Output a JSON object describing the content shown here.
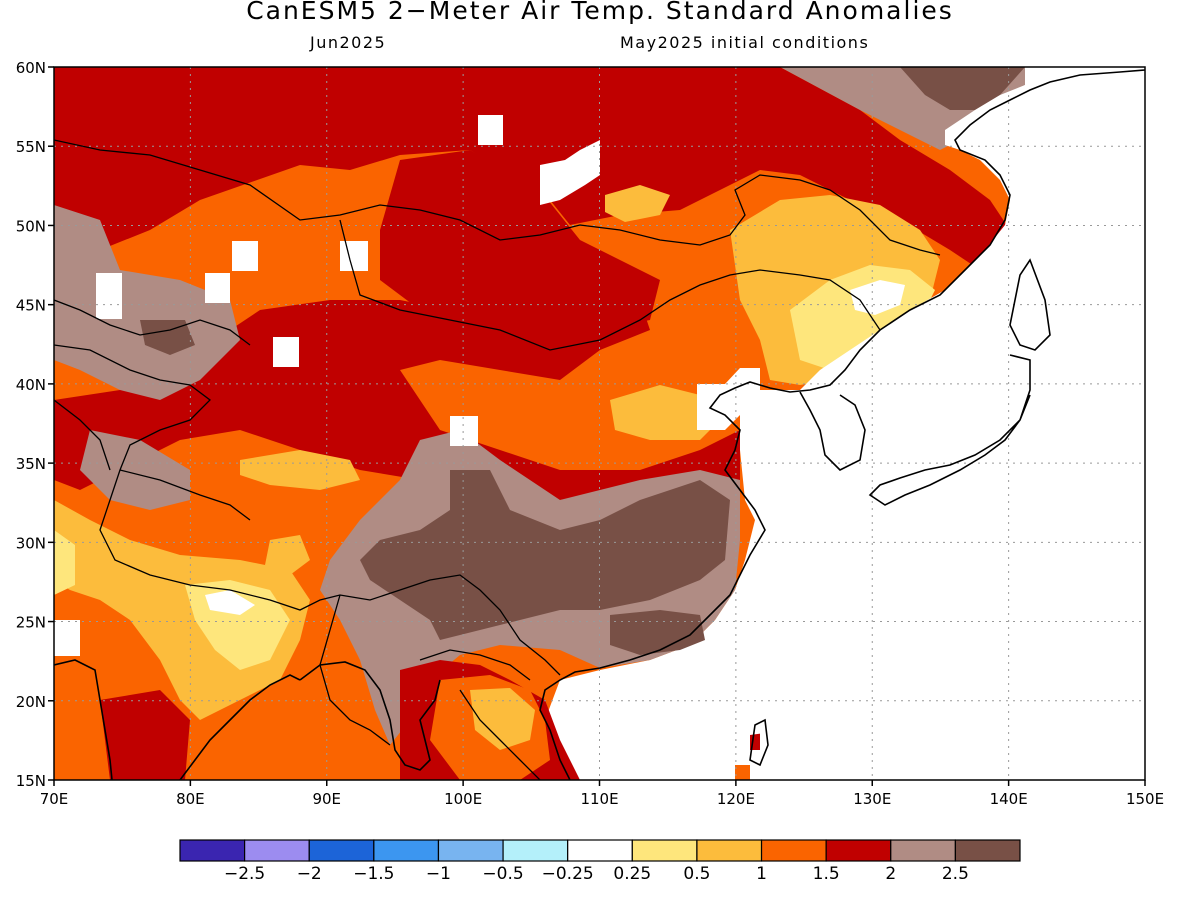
{
  "title": "CanESM5 2−Meter Air Temp. Standard Anomalies",
  "subtitle_left": "Jun2025",
  "subtitle_right": "May2025 initial conditions",
  "map": {
    "lon_labels": [
      "70E",
      "80E",
      "90E",
      "100E",
      "110E",
      "120E",
      "130E",
      "140E",
      "150E"
    ],
    "lat_labels": [
      "60N",
      "55N",
      "50N",
      "45N",
      "40N",
      "35N",
      "30N",
      "25N",
      "20N",
      "15N"
    ]
  },
  "colorbar": {
    "colors": [
      "#3a25b0",
      "#9c8cf0",
      "#1c64d8",
      "#3c96f0",
      "#78b4f0",
      "#b4f0fa",
      "#ffffff",
      "#fee67c",
      "#fcbc3c",
      "#fa6400",
      "#c00000",
      "#b08c84",
      "#785046"
    ],
    "labels": [
      "−2.5",
      "−2",
      "−1.5",
      "−1",
      "−0.5",
      "−0.25",
      "0.25",
      "0.5",
      "1",
      "1.5",
      "2",
      "2.5"
    ]
  }
}
